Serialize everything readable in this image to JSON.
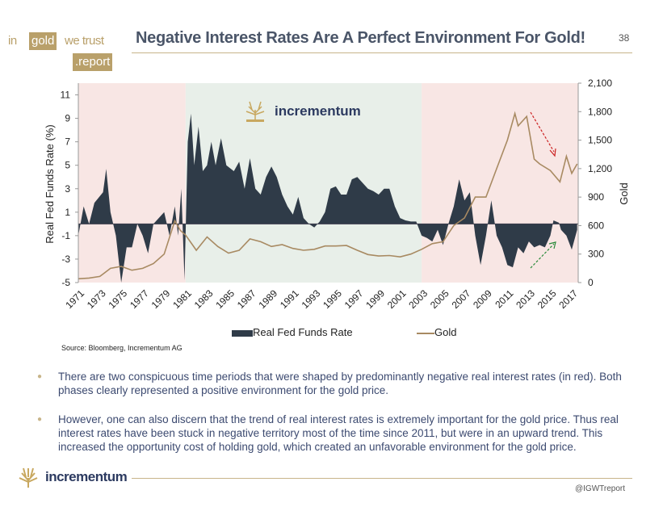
{
  "header": {
    "logo": {
      "in": "in",
      "gold": "gold",
      "we_trust": "we trust",
      "report": ".report"
    },
    "title": "Negative Interest Rates Are A Perfect Environment For Gold!",
    "page_number": "38"
  },
  "chart_data": {
    "type": "area+line",
    "watermark": "incrementum",
    "xlabel": "",
    "ylabel_left": "Real Fed Funds Rate (%)",
    "ylabel_right": "Gold",
    "ylim_left": [
      -5,
      12
    ],
    "ylim_right": [
      0,
      2100
    ],
    "xlim": [
      1971,
      2017.6
    ],
    "y_ticks_left": [
      "11",
      "9",
      "7",
      "5",
      "3",
      "1",
      "-1",
      "-3",
      "-5"
    ],
    "y_ticks_right": [
      "2,100",
      "1,800",
      "1,500",
      "1,200",
      "900",
      "600",
      "300",
      "0"
    ],
    "x_ticks": [
      "1971",
      "1973",
      "1975",
      "1977",
      "1979",
      "1981",
      "1983",
      "1985",
      "1987",
      "1989",
      "1991",
      "1993",
      "1995",
      "1997",
      "1999",
      "2001",
      "2003",
      "2005",
      "2007",
      "2009",
      "2011",
      "2013",
      "2015",
      "2017"
    ],
    "shaded_periods": [
      {
        "from": 1971,
        "to": 1981,
        "color": "#f8e6e4"
      },
      {
        "from": 1981,
        "to": 2003,
        "color": "#e8efe9"
      },
      {
        "from": 2003,
        "to": 2017.6,
        "color": "#f8e6e4"
      }
    ],
    "legend": {
      "position": "bottom",
      "entries": [
        "Real Fed Funds Rate",
        "Gold"
      ]
    },
    "source": "Source: Bloomberg, Incrementum AG",
    "colors": {
      "rate": "#2f3b48",
      "gold": "#a88a62",
      "arrow_down": "#cc2222",
      "arrow_up": "#2a8a3a"
    },
    "series": [
      {
        "name": "Real Fed Funds Rate",
        "axis": "left",
        "x": [
          1971,
          1971.5,
          1972,
          1972.5,
          1973.3,
          1973.6,
          1974,
          1974.5,
          1975,
          1975.5,
          1976,
          1976.5,
          1977,
          1977.5,
          1978,
          1978.5,
          1979,
          1979.5,
          1980,
          1980.3,
          1980.6,
          1980.9,
          1981.2,
          1981.5,
          1981.8,
          1982.2,
          1982.6,
          1983,
          1983.4,
          1983.8,
          1984.3,
          1984.8,
          1985.5,
          1986,
          1986.5,
          1987,
          1987.5,
          1988,
          1988.5,
          1989,
          1989.5,
          1990,
          1990.5,
          1991,
          1991.5,
          1992,
          1992.5,
          1993,
          1993.5,
          1994,
          1994.5,
          1995,
          1995.5,
          1996,
          1996.5,
          1997,
          1997.5,
          1998,
          1998.5,
          1999,
          1999.5,
          2000,
          2000.5,
          2001,
          2001.5,
          2002,
          2002.5,
          2003,
          2003.5,
          2004,
          2004.5,
          2005,
          2005.5,
          2006,
          2006.5,
          2007,
          2007.5,
          2008,
          2008.5,
          2009,
          2009.5,
          2010,
          2010.5,
          2011,
          2011.5,
          2012,
          2012.5,
          2013,
          2013.5,
          2014,
          2014.5,
          2015,
          2015.3,
          2015.8,
          2016,
          2016.5,
          2017,
          2017.5
        ],
        "y": [
          -1,
          1.5,
          0,
          1.8,
          2.7,
          4.7,
          1,
          -1,
          -5,
          -2,
          -2,
          0,
          -1,
          -2.5,
          0,
          0.5,
          1,
          -1,
          1.5,
          -1,
          3,
          -4.8,
          7,
          9.4,
          5,
          8.3,
          4.5,
          5,
          7,
          5,
          7.3,
          5,
          4.5,
          5.3,
          3,
          5.6,
          3,
          2.5,
          4,
          4.9,
          4,
          2.5,
          1.5,
          0.8,
          2.3,
          0.5,
          0,
          -0.3,
          0.2,
          1,
          3,
          3.2,
          2.5,
          2.5,
          3.8,
          4,
          3.5,
          3,
          2.8,
          2.5,
          3,
          3,
          1.5,
          0.5,
          0.3,
          0.2,
          0.2,
          -1,
          -1.2,
          -1.5,
          -0.5,
          -1.8,
          0,
          1.5,
          3.8,
          2,
          2.7,
          -1,
          -3.5,
          -1,
          2,
          -1,
          -2,
          -3.5,
          -3.7,
          -2,
          -2.5,
          -1.5,
          -2,
          -1.8,
          -2,
          -1,
          0.3,
          0.1,
          -0.5,
          -1,
          -2.2,
          -0.5
        ]
      },
      {
        "name": "Gold",
        "axis": "right",
        "x": [
          1971,
          1972,
          1973,
          1974,
          1975,
          1976,
          1977,
          1978,
          1979,
          1980,
          1980.5,
          1981,
          1981.5,
          1982,
          1983,
          1984,
          1985,
          1986,
          1987,
          1988,
          1989,
          1990,
          1991,
          1992,
          1993,
          1994,
          1995,
          1996,
          1997,
          1998,
          1999,
          2000,
          2001,
          2002,
          2003,
          2004,
          2005,
          2006,
          2007,
          2008,
          2009,
          2010,
          2011,
          2011.7,
          2012,
          2012.8,
          2013.5,
          2014,
          2015,
          2015.9,
          2016.5,
          2017,
          2017.5
        ],
        "y": [
          40,
          48,
          65,
          150,
          170,
          130,
          150,
          200,
          300,
          650,
          550,
          500,
          420,
          340,
          480,
          380,
          310,
          340,
          460,
          430,
          380,
          400,
          360,
          340,
          350,
          385,
          385,
          390,
          340,
          295,
          280,
          285,
          270,
          300,
          350,
          410,
          430,
          600,
          680,
          900,
          900,
          1200,
          1500,
          1780,
          1650,
          1750,
          1300,
          1250,
          1180,
          1060,
          1330,
          1150,
          1250
        ]
      }
    ]
  },
  "bullets": [
    "There are two conspicuous time periods that were shaped by predominantly negative real interest rates (in red). Both phases clearly represented a positive environment for the gold price.",
    "However, one can also discern that the trend of real interest rates is extremely important for the gold price. Thus real interest rates have been stuck in negative territory most of the time since 2011, but were in an upward trend. This increased the opportunity cost of holding gold, which created an unfavorable environment for the gold price."
  ],
  "footer": {
    "logo": "incrementum",
    "handle": "@IGWTreport"
  }
}
